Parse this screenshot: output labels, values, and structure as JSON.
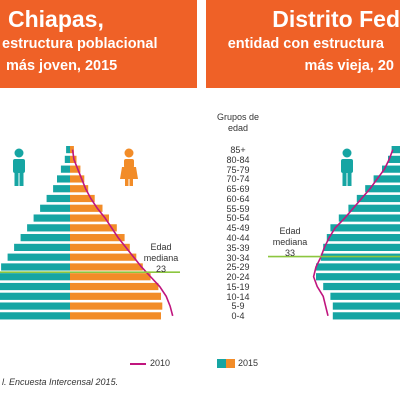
{
  "panels": [
    {
      "title": "Chiapas,",
      "subtitle_line1": "estructura poblacional",
      "subtitle_line2": "más joven, 2015"
    },
    {
      "title": "Distrito Fed",
      "subtitle_line1": "entidad con estructura",
      "subtitle_line2": "más vieja, 20"
    }
  ],
  "colors": {
    "men": "#16a5a3",
    "women": "#f28c28",
    "line_2010": "#c0157e",
    "median": "#8cc63f",
    "banner": "#ef6127"
  },
  "icons": [
    "male-person-icon",
    "female-person-icon"
  ],
  "chart_data": [
    {
      "type": "bar",
      "orientation": "horizontal-population-pyramid",
      "axis_title": "Grupos de edad",
      "categories": [
        "85+",
        "80-84",
        "75-79",
        "70-74",
        "65-69",
        "60-64",
        "55-59",
        "50-54",
        "45-49",
        "40-44",
        "35-39",
        "30-34",
        "25-29",
        "20-24",
        "15-19",
        "10-14",
        "5-9",
        "0-4"
      ],
      "series": [
        {
          "name": "2015",
          "sex": "men",
          "values": [
            0.3,
            0.4,
            0.7,
            1.0,
            1.3,
            1.8,
            2.3,
            2.8,
            3.3,
            3.8,
            4.3,
            4.8,
            5.3,
            6.0,
            6.8,
            7.0,
            7.2,
            7.2
          ]
        },
        {
          "name": "2015",
          "sex": "women",
          "values": [
            0.3,
            0.5,
            0.8,
            1.1,
            1.4,
            1.9,
            2.5,
            3.0,
            3.6,
            4.2,
            4.6,
            5.1,
            5.6,
            6.2,
            6.8,
            7.0,
            7.1,
            7.0
          ]
        },
        {
          "name": "2010",
          "sex": "women",
          "values": [
            0.2,
            0.3,
            0.6,
            0.9,
            1.2,
            1.6,
            2.1,
            2.7,
            3.2,
            3.7,
            4.3,
            4.9,
            5.5,
            6.2,
            6.9,
            7.4,
            7.7,
            7.9
          ]
        }
      ],
      "median_age_label": "Edad\nmediana\n23",
      "median_age_group": "20-24"
    },
    {
      "type": "bar",
      "orientation": "horizontal-population-pyramid",
      "categories": [
        "85+",
        "80-84",
        "75-79",
        "70-74",
        "65-69",
        "60-64",
        "55-59",
        "50-54",
        "45-49",
        "40-44",
        "35-39",
        "30-34",
        "25-29",
        "20-24",
        "15-19",
        "10-14",
        "5-9",
        "0-4"
      ],
      "series": [
        {
          "name": "2015",
          "sex": "men",
          "values": [
            0.7,
            1.0,
            1.5,
            2.2,
            2.9,
            3.6,
            4.3,
            5.1,
            5.8,
            6.1,
            6.4,
            6.6,
            7.0,
            7.0,
            6.4,
            5.8,
            5.6,
            5.6
          ]
        },
        {
          "name": "2010",
          "sex": "men",
          "values": [
            0.6,
            0.9,
            1.3,
            1.9,
            2.5,
            3.2,
            3.9,
            4.6,
            5.4,
            5.9,
            6.3,
            6.6,
            7.0,
            7.2,
            6.9,
            6.4,
            6.2,
            6.0
          ]
        }
      ],
      "median_age_label": "Edad\nmediana\n33",
      "median_age_group": "30-34"
    }
  ],
  "legend": {
    "line_label": "2010",
    "bar_label": "2015"
  },
  "source": "l. Encuesta Intercensal 2015."
}
